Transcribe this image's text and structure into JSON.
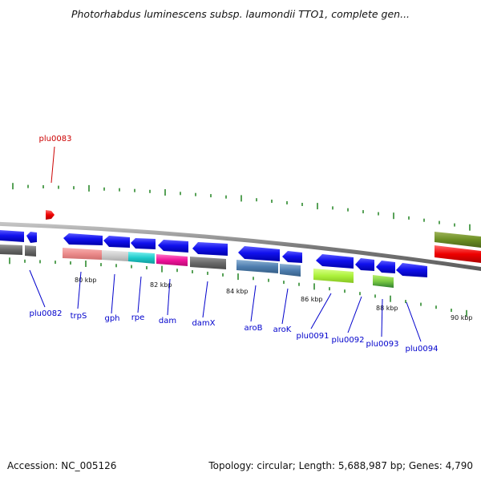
{
  "header": {
    "title": "Photorhabdus luminescens subsp. laumondii TTO1, complete gen..."
  },
  "footer": {
    "accession": "Accession: NC_005126",
    "topology": "Topology: circular; Length: 5,688,987 bp; Genes: 4,790"
  },
  "colors": {
    "cds": "#1a1aff",
    "highlight": "#ff0000",
    "label": "#0000cc",
    "highlight_label": "#cc0000",
    "tick": "#2e8b2e",
    "backbone": "#808080",
    "scale_text": "#111111"
  },
  "scale": {
    "labels": [
      "80 kbp",
      "82 kbp",
      "84 kbp",
      "86 kbp",
      "88 kbp",
      "90 kbp"
    ]
  },
  "genes": {
    "highlighted": "plu0083",
    "labels": [
      "plu0083",
      "plu0082",
      "trpS",
      "gph",
      "rpe",
      "dam",
      "damX",
      "aroB",
      "aroK",
      "plu0091",
      "plu0092",
      "plu0093",
      "plu0094"
    ]
  }
}
